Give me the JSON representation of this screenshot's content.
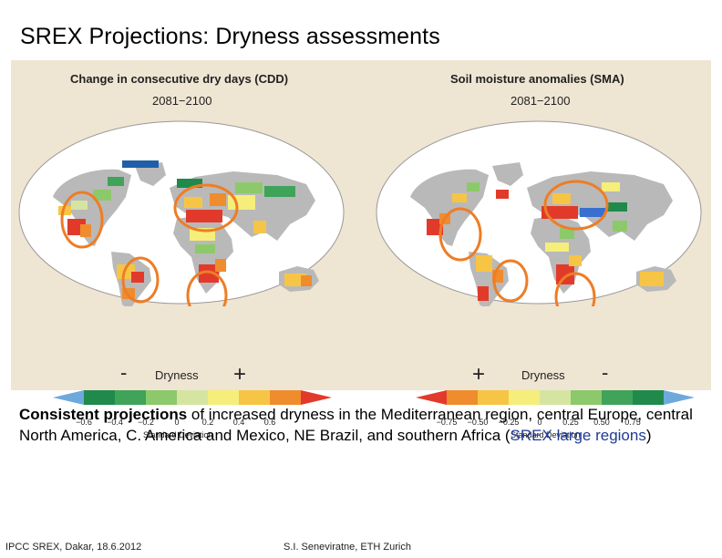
{
  "slide": {
    "title": "SREX Projections: Dryness assessments",
    "body": {
      "lead": "Consistent projections",
      "text": " of increased dryness in the Mediterranean region, central Europe, central North America, C. America and Mexico, NE Brazil, and southern Africa (",
      "highlight": "SREX large regions",
      "tail": ")"
    },
    "footer": {
      "left": "IPCC SREX, Dakar, 18.6.2012",
      "center": "S.I. Seneviratne, ETH Zurich"
    }
  },
  "panels": [
    {
      "title": "Change in consecutive dry days (CDD)",
      "period": "2081−2100",
      "legend": {
        "left_sign": "-",
        "label": "Dryness",
        "right_sign": "+",
        "ticks": [
          "−0.6",
          "−0.4",
          "−0.2",
          "0",
          "0.2",
          "0.4",
          "0.6"
        ],
        "caption": "Standard Deviation",
        "colors": [
          "#6ea9dd",
          "#1f8a4c",
          "#3fa35a",
          "#8cc96b",
          "#d6e4a2",
          "#f5ee7a",
          "#f7c545",
          "#ef8c2e",
          "#e23a2a"
        ]
      }
    },
    {
      "title": "Soil moisture anomalies (SMA)",
      "period": "2081−2100",
      "legend": {
        "left_sign": "+",
        "label": "Dryness",
        "right_sign": "-",
        "ticks": [
          "−0.75",
          "−0.50",
          "−0.25",
          "0",
          "0.25",
          "0.50",
          "0.75"
        ],
        "caption": "Standard Deviation",
        "colors": [
          "#e23a2a",
          "#ef8c2e",
          "#f7c545",
          "#f5ee7a",
          "#d6e4a2",
          "#8cc96b",
          "#3fa35a",
          "#1f8a4c",
          "#6ea9dd"
        ]
      }
    }
  ],
  "colors": {
    "figure_background": "#efe5d3",
    "ocean": "#ffffff",
    "land": "#b9b9b9",
    "circle": "#ee7d25",
    "highlight_text": "#1f3a93"
  }
}
